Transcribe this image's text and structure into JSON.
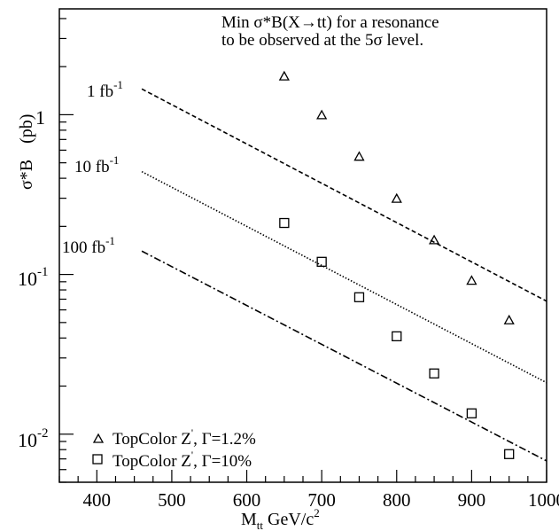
{
  "chart_data": {
    "type": "scatter",
    "annotation": {
      "line1": "Min σ*B(X→tt) for a resonance",
      "line2": "to be observed at the 5σ level."
    },
    "xlabel": {
      "main": "M",
      "sub": "tt",
      "unit": "  GeV/c",
      "sup": "2"
    },
    "ylabel": {
      "main": "σ*B",
      "unit": "(pb)"
    },
    "xlim": [
      350,
      1000
    ],
    "ylim": [
      0.005,
      4.6
    ],
    "yscale": "log",
    "x_ticks": [
      {
        "value": 400,
        "label": "400"
      },
      {
        "value": 500,
        "label": "500"
      },
      {
        "value": 600,
        "label": "600"
      },
      {
        "value": 700,
        "label": "700"
      },
      {
        "value": 800,
        "label": "800"
      },
      {
        "value": 900,
        "label": "900"
      },
      {
        "value": 1000,
        "label": "1000"
      }
    ],
    "y_tick_labels": {
      "one": "1",
      "tenth_base": "10",
      "tenth_exp": "-1",
      "hundredth_base": "10",
      "hundredth_exp": "-2"
    },
    "lines": [
      {
        "label_base": "1 fb",
        "label_exp": "-1",
        "x": [
          460,
          1000
        ],
        "y": [
          1.45,
          0.068
        ],
        "style": "dashed"
      },
      {
        "label_base": "10 fb",
        "label_exp": "-1",
        "x": [
          460,
          1000
        ],
        "y": [
          0.44,
          0.021
        ],
        "style": "dotted"
      },
      {
        "label_base": "100 fb",
        "label_exp": "-1",
        "x": [
          460,
          1000
        ],
        "y": [
          0.14,
          0.0068
        ],
        "style": "dashdot"
      }
    ],
    "series": [
      {
        "name": "TopColor Z', Γ=1.2%",
        "marker": "triangle",
        "x": [
          650,
          700,
          750,
          800,
          850,
          900,
          950
        ],
        "y": [
          1.75,
          1.0,
          0.55,
          0.3,
          0.165,
          0.092,
          0.052
        ]
      },
      {
        "name": "TopColor Z', Γ=10%",
        "marker": "square",
        "x": [
          650,
          700,
          750,
          800,
          850,
          900,
          950
        ],
        "y": [
          0.21,
          0.12,
          0.072,
          0.041,
          0.024,
          0.0135,
          0.0075
        ]
      }
    ],
    "legend": [
      {
        "base": "TopColor Z",
        "mark": "'",
        "rest": ", Γ=1.2%"
      },
      {
        "base": "TopColor Z",
        "mark": "'",
        "rest": ", Γ=10%"
      }
    ],
    "legend_position": "bottom-left",
    "grid": false
  }
}
